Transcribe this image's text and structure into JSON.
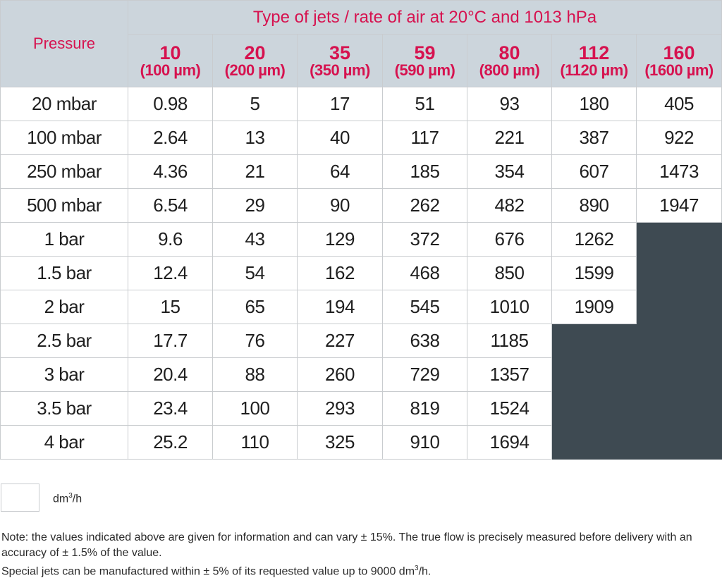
{
  "table": {
    "pressure_header": "Pressure",
    "group_header": "Type of jets / rate of air at 20°C and 1013 hPa",
    "jets": [
      {
        "num": "10",
        "um": "(100 µm)"
      },
      {
        "num": "20",
        "um": "(200 µm)"
      },
      {
        "num": "35",
        "um": "(350 µm)"
      },
      {
        "num": "59",
        "um": "(590 µm)"
      },
      {
        "num": "80",
        "um": "(800 µm)"
      },
      {
        "num": "112",
        "um": "(1120 µm)"
      },
      {
        "num": "160",
        "um": "(1600 µm)"
      }
    ],
    "rows": [
      {
        "pressure": "20 mbar",
        "values": [
          "0.98",
          "5",
          "17",
          "51",
          "93",
          "180",
          "405"
        ]
      },
      {
        "pressure": "100 mbar",
        "values": [
          "2.64",
          "13",
          "40",
          "117",
          "221",
          "387",
          "922"
        ]
      },
      {
        "pressure": "250 mbar",
        "values": [
          "4.36",
          "21",
          "64",
          "185",
          "354",
          "607",
          "1473"
        ]
      },
      {
        "pressure": "500 mbar",
        "values": [
          "6.54",
          "29",
          "90",
          "262",
          "482",
          "890",
          "1947"
        ]
      },
      {
        "pressure": "1 bar",
        "values": [
          "9.6",
          "43",
          "129",
          "372",
          "676",
          "1262",
          ""
        ]
      },
      {
        "pressure": "1.5 bar",
        "values": [
          "12.4",
          "54",
          "162",
          "468",
          "850",
          "1599",
          ""
        ]
      },
      {
        "pressure": "2 bar",
        "values": [
          "15",
          "65",
          "194",
          "545",
          "1010",
          "1909",
          ""
        ]
      },
      {
        "pressure": "2.5 bar",
        "values": [
          "17.7",
          "76",
          "227",
          "638",
          "1185",
          "",
          ""
        ]
      },
      {
        "pressure": "3 bar",
        "values": [
          "20.4",
          "88",
          "260",
          "729",
          "1357",
          "",
          ""
        ]
      },
      {
        "pressure": "3.5 bar",
        "values": [
          "23.4",
          "100",
          "293",
          "819",
          "1524",
          "",
          ""
        ]
      },
      {
        "pressure": "4 bar",
        "values": [
          "25.2",
          "110",
          "325",
          "910",
          "1694",
          "",
          ""
        ]
      }
    ]
  },
  "legend": {
    "unit_base": "dm",
    "unit_sup": "3",
    "unit_tail": "/h"
  },
  "note": {
    "line1": "Note: the values indicated above are given for information and can vary ± 15%. The true flow is precisely measured before delivery with an accuracy of ± 1.5% of the value.",
    "line2_pre": "Special jets can be manufactured within ± 5% of its requested value up to 9000 dm",
    "line2_sup": "3",
    "line2_post": "/h."
  },
  "colors": {
    "header_bg": "#ccd5dc",
    "header_text": "#d6124f",
    "empty_cell": "#3e4a52",
    "grid": "#c9cccf"
  }
}
